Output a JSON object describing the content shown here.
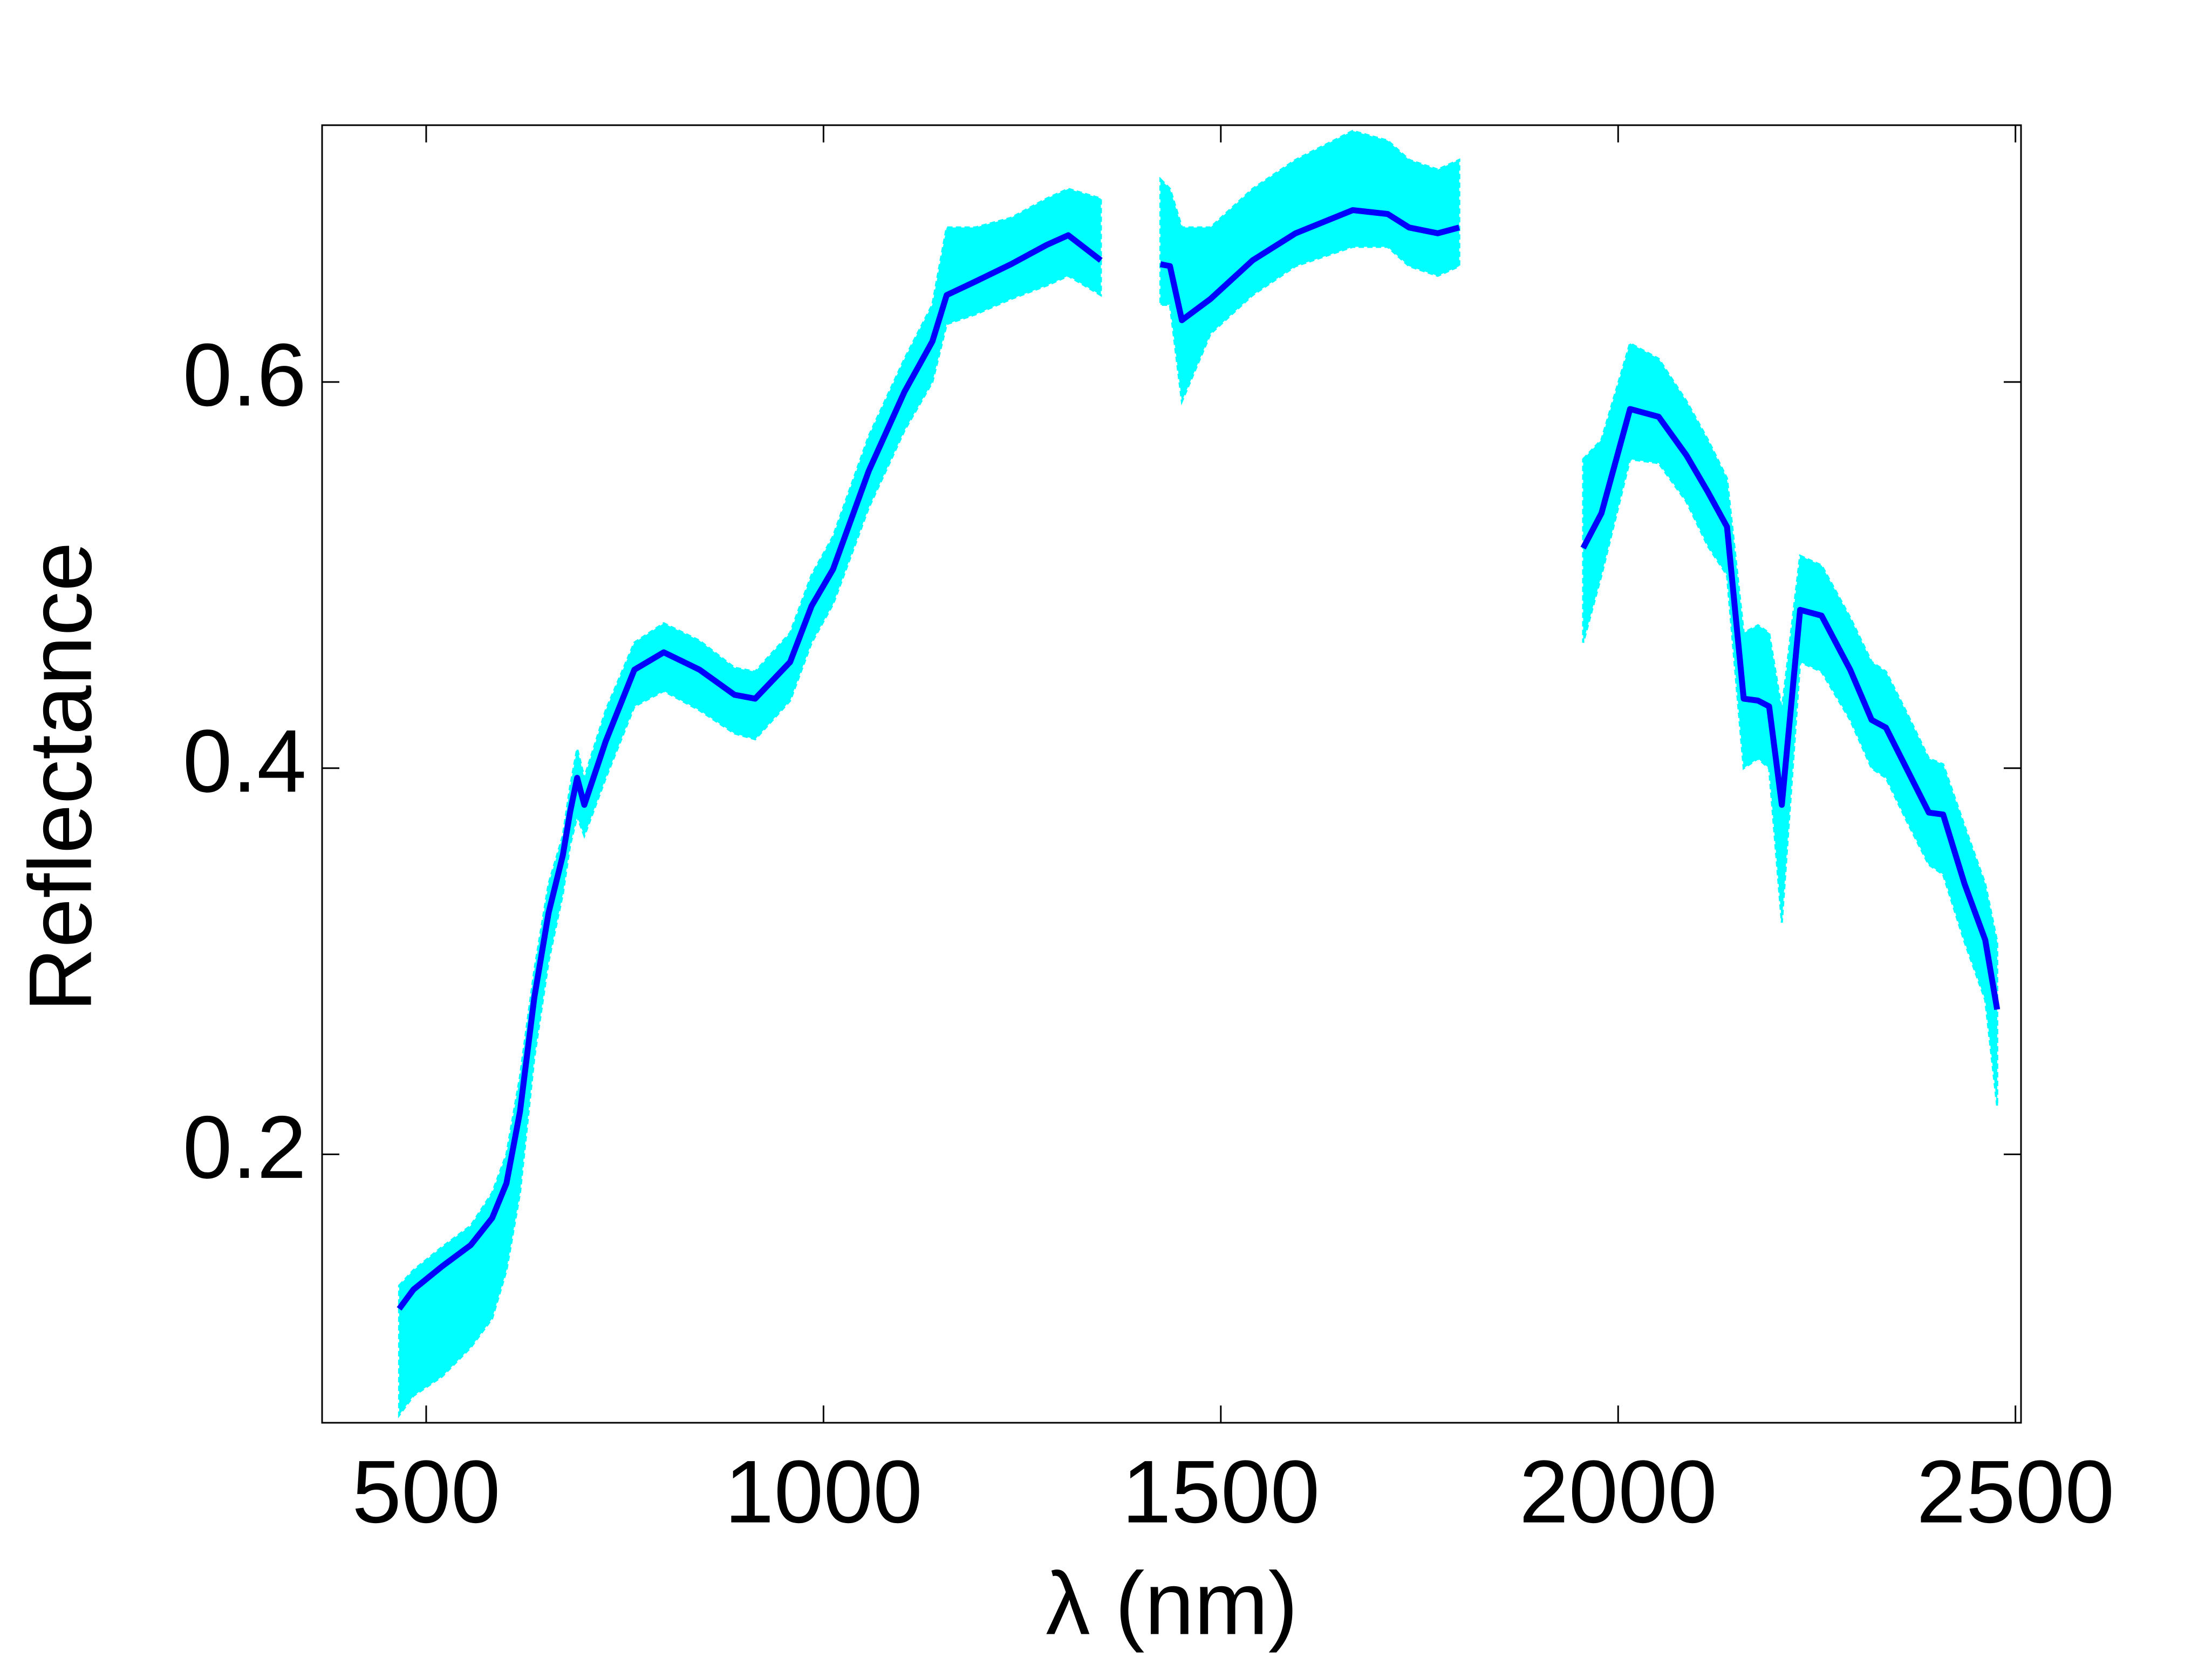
{
  "chart_data": {
    "type": "line",
    "x_label": "λ (nm)",
    "y_label": "Reflectance",
    "x": [
      466,
      484,
      520,
      556,
      583,
      601,
      618,
      636,
      654,
      672,
      681,
      690,
      699,
      726,
      762,
      799,
      844,
      888,
      914,
      958,
      985,
      1012,
      1057,
      1102,
      1137,
      1155,
      1191,
      1236,
      1281,
      1308,
      1349,
      1390,
      1424,
      1436,
      1451,
      1487,
      1540,
      1594,
      1666,
      1710,
      1737,
      1773,
      1800,
      1880,
      1956,
      1979,
      2015,
      2051,
      2086,
      2113,
      2137,
      2158,
      2176,
      2190,
      2206,
      2229,
      2256,
      2292,
      2319,
      2337,
      2364,
      2391,
      2409,
      2436,
      2462,
      2477
    ],
    "band": {
      "color": "#00ffff",
      "upper": [
        0.132,
        0.14,
        0.152,
        0.163,
        0.18,
        0.2,
        0.24,
        0.295,
        0.34,
        0.365,
        0.39,
        0.41,
        0.395,
        0.43,
        0.465,
        0.475,
        0.466,
        0.452,
        0.45,
        0.47,
        0.5,
        0.52,
        0.572,
        0.612,
        0.64,
        0.68,
        0.68,
        0.685,
        0.695,
        0.7,
        0.695,
        null,
        0.705,
        0.7,
        0.68,
        0.68,
        0.7,
        0.715,
        0.73,
        0.725,
        0.715,
        0.71,
        0.715,
        null,
        0.56,
        0.57,
        0.62,
        0.612,
        0.59,
        0.57,
        0.55,
        0.47,
        0.474,
        0.47,
        0.43,
        0.51,
        0.505,
        0.478,
        0.455,
        0.45,
        0.428,
        0.405,
        0.402,
        0.37,
        0.34,
        0.31
      ],
      "lower": [
        0.065,
        0.075,
        0.085,
        0.1,
        0.115,
        0.14,
        0.18,
        0.25,
        0.3,
        0.335,
        0.36,
        0.375,
        0.365,
        0.395,
        0.432,
        0.44,
        0.43,
        0.418,
        0.415,
        0.435,
        0.465,
        0.485,
        0.535,
        0.575,
        0.6,
        0.63,
        0.635,
        0.643,
        0.65,
        0.655,
        0.645,
        null,
        0.64,
        0.64,
        0.59,
        0.625,
        0.645,
        0.66,
        0.67,
        0.67,
        0.66,
        0.655,
        0.66,
        null,
        0.465,
        0.5,
        0.56,
        0.558,
        0.538,
        0.515,
        0.5,
        0.4,
        0.405,
        0.4,
        0.32,
        0.455,
        0.45,
        0.425,
        0.4,
        0.395,
        0.372,
        0.35,
        0.345,
        0.31,
        0.28,
        0.225
      ]
    },
    "series": [
      {
        "color": "#0000ff",
        "values": [
          0.12,
          0.13,
          0.142,
          0.153,
          0.167,
          0.185,
          0.222,
          0.281,
          0.325,
          0.355,
          0.377,
          0.395,
          0.381,
          0.414,
          0.451,
          0.46,
          0.451,
          0.438,
          0.436,
          0.455,
          0.484,
          0.503,
          0.554,
          0.595,
          0.621,
          0.645,
          0.652,
          0.661,
          0.671,
          0.676,
          0.663,
          null,
          0.661,
          0.66,
          0.632,
          0.643,
          0.663,
          0.677,
          0.689,
          0.687,
          0.68,
          0.677,
          0.68,
          null,
          0.514,
          0.532,
          0.586,
          0.582,
          0.562,
          0.543,
          0.525,
          0.436,
          0.435,
          0.432,
          0.381,
          0.482,
          0.479,
          0.451,
          0.425,
          0.421,
          0.399,
          0.377,
          0.376,
          0.34,
          0.311,
          0.275
        ]
      }
    ],
    "xlim": [
      369,
      2507
    ],
    "ylim": [
      0.061,
      0.733
    ],
    "xticks": [
      500,
      1000,
      1500,
      2000,
      2500
    ],
    "yticks": [
      0.2,
      0.4,
      0.6
    ],
    "grid": false
  }
}
